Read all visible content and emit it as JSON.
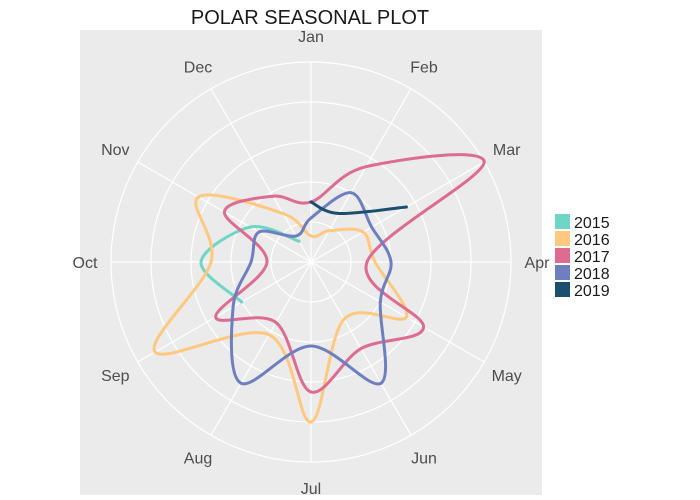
{
  "chart_data": {
    "type": "line",
    "subtype": "polar",
    "title": "POLAR SEASONAL PLOT",
    "angular_axis": {
      "categories": [
        "Jan",
        "Feb",
        "Mar",
        "Apr",
        "May",
        "Jun",
        "Jul",
        "Aug",
        "Sep",
        "Oct",
        "Nov",
        "Dec"
      ],
      "direction": "clockwise",
      "start": "top"
    },
    "radial_axis": {
      "range": [
        0,
        1
      ],
      "tick_labels": []
    },
    "grid": true,
    "legend": {
      "position": "right"
    },
    "series": [
      {
        "name": "2015",
        "color": "#6fd6c7",
        "x": [
          "Sep",
          "Oct",
          "Nov",
          "Dec"
        ],
        "values": [
          0.4,
          0.55,
          0.35,
          0.12
        ]
      },
      {
        "name": "2016",
        "color": "#fec87e",
        "x": [
          "Jan",
          "Feb",
          "Mar",
          "Apr",
          "May",
          "Jun",
          "Jul",
          "Aug",
          "Sep",
          "Oct",
          "Nov",
          "Dec"
        ],
        "values": [
          0.13,
          0.18,
          0.3,
          0.32,
          0.55,
          0.33,
          0.8,
          0.42,
          0.9,
          0.5,
          0.65,
          0.28
        ]
      },
      {
        "name": "2017",
        "color": "#de6b92",
        "x": [
          "Jan",
          "Feb",
          "Mar",
          "Apr",
          "May",
          "Jun",
          "Jul",
          "Aug",
          "Sep",
          "Oct",
          "Nov",
          "Dec"
        ],
        "values": [
          0.3,
          0.55,
          1.0,
          0.28,
          0.65,
          0.5,
          0.65,
          0.35,
          0.55,
          0.22,
          0.5,
          0.38
        ]
      },
      {
        "name": "2018",
        "color": "#6e7fbf",
        "x": [
          "Jan",
          "Feb",
          "Mar",
          "Apr",
          "May",
          "Jun",
          "Jul",
          "Aug",
          "Sep",
          "Oct",
          "Nov",
          "Dec"
        ],
        "values": [
          0.22,
          0.4,
          0.35,
          0.4,
          0.4,
          0.7,
          0.42,
          0.7,
          0.45,
          0.3,
          0.3,
          0.15
        ]
      },
      {
        "name": "2019",
        "color": "#1c4e6f",
        "x": [
          "Jan",
          "Feb",
          "Mar"
        ],
        "values": [
          0.3,
          0.28,
          0.55
        ]
      }
    ]
  }
}
